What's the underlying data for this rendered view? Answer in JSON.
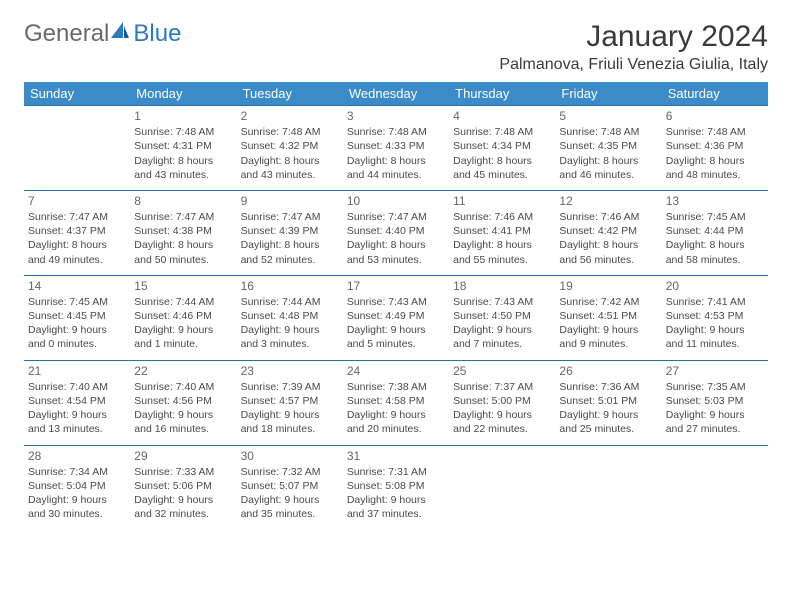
{
  "logo": {
    "text1": "General",
    "text2": "Blue"
  },
  "title": "January 2024",
  "location": "Palmanova, Friuli Venezia Giulia, Italy",
  "colors": {
    "header_bg": "#3b8bc9",
    "header_text": "#ffffff",
    "row_border": "#2b6fa8",
    "logo_gray": "#6a6a6a",
    "logo_blue": "#2b7bbf"
  },
  "weekdays": [
    "Sunday",
    "Monday",
    "Tuesday",
    "Wednesday",
    "Thursday",
    "Friday",
    "Saturday"
  ],
  "weeks": [
    [
      null,
      {
        "day": "1",
        "sunrise": "Sunrise: 7:48 AM",
        "sunset": "Sunset: 4:31 PM",
        "dl1": "Daylight: 8 hours",
        "dl2": "and 43 minutes."
      },
      {
        "day": "2",
        "sunrise": "Sunrise: 7:48 AM",
        "sunset": "Sunset: 4:32 PM",
        "dl1": "Daylight: 8 hours",
        "dl2": "and 43 minutes."
      },
      {
        "day": "3",
        "sunrise": "Sunrise: 7:48 AM",
        "sunset": "Sunset: 4:33 PM",
        "dl1": "Daylight: 8 hours",
        "dl2": "and 44 minutes."
      },
      {
        "day": "4",
        "sunrise": "Sunrise: 7:48 AM",
        "sunset": "Sunset: 4:34 PM",
        "dl1": "Daylight: 8 hours",
        "dl2": "and 45 minutes."
      },
      {
        "day": "5",
        "sunrise": "Sunrise: 7:48 AM",
        "sunset": "Sunset: 4:35 PM",
        "dl1": "Daylight: 8 hours",
        "dl2": "and 46 minutes."
      },
      {
        "day": "6",
        "sunrise": "Sunrise: 7:48 AM",
        "sunset": "Sunset: 4:36 PM",
        "dl1": "Daylight: 8 hours",
        "dl2": "and 48 minutes."
      }
    ],
    [
      {
        "day": "7",
        "sunrise": "Sunrise: 7:47 AM",
        "sunset": "Sunset: 4:37 PM",
        "dl1": "Daylight: 8 hours",
        "dl2": "and 49 minutes."
      },
      {
        "day": "8",
        "sunrise": "Sunrise: 7:47 AM",
        "sunset": "Sunset: 4:38 PM",
        "dl1": "Daylight: 8 hours",
        "dl2": "and 50 minutes."
      },
      {
        "day": "9",
        "sunrise": "Sunrise: 7:47 AM",
        "sunset": "Sunset: 4:39 PM",
        "dl1": "Daylight: 8 hours",
        "dl2": "and 52 minutes."
      },
      {
        "day": "10",
        "sunrise": "Sunrise: 7:47 AM",
        "sunset": "Sunset: 4:40 PM",
        "dl1": "Daylight: 8 hours",
        "dl2": "and 53 minutes."
      },
      {
        "day": "11",
        "sunrise": "Sunrise: 7:46 AM",
        "sunset": "Sunset: 4:41 PM",
        "dl1": "Daylight: 8 hours",
        "dl2": "and 55 minutes."
      },
      {
        "day": "12",
        "sunrise": "Sunrise: 7:46 AM",
        "sunset": "Sunset: 4:42 PM",
        "dl1": "Daylight: 8 hours",
        "dl2": "and 56 minutes."
      },
      {
        "day": "13",
        "sunrise": "Sunrise: 7:45 AM",
        "sunset": "Sunset: 4:44 PM",
        "dl1": "Daylight: 8 hours",
        "dl2": "and 58 minutes."
      }
    ],
    [
      {
        "day": "14",
        "sunrise": "Sunrise: 7:45 AM",
        "sunset": "Sunset: 4:45 PM",
        "dl1": "Daylight: 9 hours",
        "dl2": "and 0 minutes."
      },
      {
        "day": "15",
        "sunrise": "Sunrise: 7:44 AM",
        "sunset": "Sunset: 4:46 PM",
        "dl1": "Daylight: 9 hours",
        "dl2": "and 1 minute."
      },
      {
        "day": "16",
        "sunrise": "Sunrise: 7:44 AM",
        "sunset": "Sunset: 4:48 PM",
        "dl1": "Daylight: 9 hours",
        "dl2": "and 3 minutes."
      },
      {
        "day": "17",
        "sunrise": "Sunrise: 7:43 AM",
        "sunset": "Sunset: 4:49 PM",
        "dl1": "Daylight: 9 hours",
        "dl2": "and 5 minutes."
      },
      {
        "day": "18",
        "sunrise": "Sunrise: 7:43 AM",
        "sunset": "Sunset: 4:50 PM",
        "dl1": "Daylight: 9 hours",
        "dl2": "and 7 minutes."
      },
      {
        "day": "19",
        "sunrise": "Sunrise: 7:42 AM",
        "sunset": "Sunset: 4:51 PM",
        "dl1": "Daylight: 9 hours",
        "dl2": "and 9 minutes."
      },
      {
        "day": "20",
        "sunrise": "Sunrise: 7:41 AM",
        "sunset": "Sunset: 4:53 PM",
        "dl1": "Daylight: 9 hours",
        "dl2": "and 11 minutes."
      }
    ],
    [
      {
        "day": "21",
        "sunrise": "Sunrise: 7:40 AM",
        "sunset": "Sunset: 4:54 PM",
        "dl1": "Daylight: 9 hours",
        "dl2": "and 13 minutes."
      },
      {
        "day": "22",
        "sunrise": "Sunrise: 7:40 AM",
        "sunset": "Sunset: 4:56 PM",
        "dl1": "Daylight: 9 hours",
        "dl2": "and 16 minutes."
      },
      {
        "day": "23",
        "sunrise": "Sunrise: 7:39 AM",
        "sunset": "Sunset: 4:57 PM",
        "dl1": "Daylight: 9 hours",
        "dl2": "and 18 minutes."
      },
      {
        "day": "24",
        "sunrise": "Sunrise: 7:38 AM",
        "sunset": "Sunset: 4:58 PM",
        "dl1": "Daylight: 9 hours",
        "dl2": "and 20 minutes."
      },
      {
        "day": "25",
        "sunrise": "Sunrise: 7:37 AM",
        "sunset": "Sunset: 5:00 PM",
        "dl1": "Daylight: 9 hours",
        "dl2": "and 22 minutes."
      },
      {
        "day": "26",
        "sunrise": "Sunrise: 7:36 AM",
        "sunset": "Sunset: 5:01 PM",
        "dl1": "Daylight: 9 hours",
        "dl2": "and 25 minutes."
      },
      {
        "day": "27",
        "sunrise": "Sunrise: 7:35 AM",
        "sunset": "Sunset: 5:03 PM",
        "dl1": "Daylight: 9 hours",
        "dl2": "and 27 minutes."
      }
    ],
    [
      {
        "day": "28",
        "sunrise": "Sunrise: 7:34 AM",
        "sunset": "Sunset: 5:04 PM",
        "dl1": "Daylight: 9 hours",
        "dl2": "and 30 minutes."
      },
      {
        "day": "29",
        "sunrise": "Sunrise: 7:33 AM",
        "sunset": "Sunset: 5:06 PM",
        "dl1": "Daylight: 9 hours",
        "dl2": "and 32 minutes."
      },
      {
        "day": "30",
        "sunrise": "Sunrise: 7:32 AM",
        "sunset": "Sunset: 5:07 PM",
        "dl1": "Daylight: 9 hours",
        "dl2": "and 35 minutes."
      },
      {
        "day": "31",
        "sunrise": "Sunrise: 7:31 AM",
        "sunset": "Sunset: 5:08 PM",
        "dl1": "Daylight: 9 hours",
        "dl2": "and 37 minutes."
      },
      null,
      null,
      null
    ]
  ]
}
